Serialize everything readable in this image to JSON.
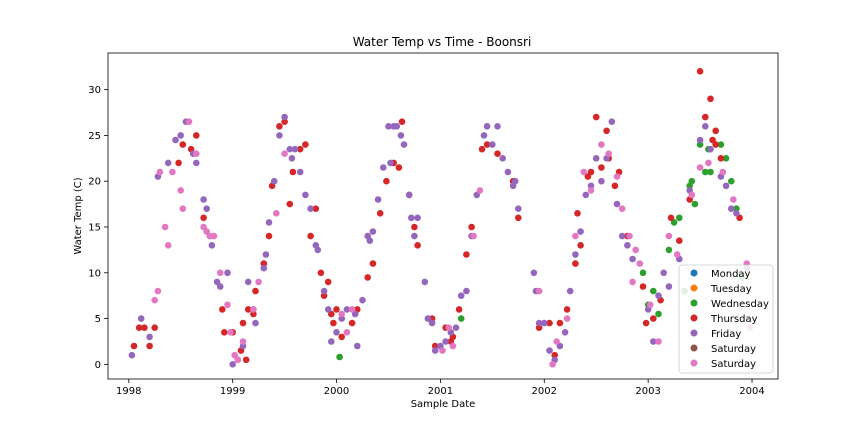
{
  "chart_data": {
    "type": "scatter",
    "title": "Water Temp vs Time - Boonsri",
    "xlabel": "Sample Date",
    "ylabel": "Water Temp (C)",
    "xlim": [
      1997.8,
      2004.25
    ],
    "ylim": [
      -1.6,
      34.0
    ],
    "x_ticks": [
      1998,
      1999,
      2000,
      2001,
      2002,
      2003,
      2004
    ],
    "x_tick_labels": [
      "1998",
      "1999",
      "2000",
      "2001",
      "2002",
      "2003",
      "2004"
    ],
    "y_ticks": [
      0,
      5,
      10,
      15,
      20,
      25,
      30
    ],
    "y_tick_labels": [
      "0",
      "5",
      "10",
      "15",
      "20",
      "25",
      "30"
    ],
    "grid": false,
    "legend_position": "lower-right",
    "series": [
      {
        "name": "Monday",
        "color": "#1f77b4",
        "points": []
      },
      {
        "name": "Tuesday",
        "color": "#ff7f0e",
        "points": []
      },
      {
        "name": "Wednesday",
        "color": "#2ca02c",
        "points": [
          [
            2000.03,
            0.8
          ],
          [
            2001.2,
            5.0
          ],
          [
            2003.0,
            6.5
          ],
          [
            2003.05,
            8.0
          ],
          [
            2003.1,
            5.5
          ],
          [
            2003.2,
            12.5
          ],
          [
            2003.25,
            15.5
          ],
          [
            2003.3,
            16.0
          ],
          [
            2003.35,
            8.0
          ],
          [
            2003.4,
            19.5
          ],
          [
            2003.42,
            20.0
          ],
          [
            2003.45,
            17.5
          ],
          [
            2003.5,
            24.0
          ],
          [
            2003.55,
            21.0
          ],
          [
            2003.6,
            21.0
          ],
          [
            2003.7,
            24.0
          ],
          [
            2003.75,
            22.5
          ],
          [
            2003.8,
            20.0
          ],
          [
            2003.85,
            17.0
          ],
          [
            2003.9,
            9.5
          ],
          [
            2002.95,
            10.0
          ],
          [
            2003.58,
            23.5
          ]
        ]
      },
      {
        "name": "Thursday",
        "color": "#d62728",
        "points": [
          [
            1998.05,
            2.0
          ],
          [
            1998.1,
            4.0
          ],
          [
            1998.15,
            4.0
          ],
          [
            1998.2,
            2.0
          ],
          [
            1998.25,
            4.0
          ],
          [
            1998.48,
            22.0
          ],
          [
            1998.52,
            24.0
          ],
          [
            1998.6,
            23.5
          ],
          [
            1998.65,
            25.0
          ],
          [
            1998.72,
            16.0
          ],
          [
            1998.9,
            6.0
          ],
          [
            1998.92,
            3.5
          ],
          [
            1999.0,
            3.5
          ],
          [
            1999.08,
            1.5
          ],
          [
            1999.1,
            4.5
          ],
          [
            1999.13,
            0.5
          ],
          [
            1999.15,
            6.0
          ],
          [
            1999.2,
            5.5
          ],
          [
            1999.22,
            8.0
          ],
          [
            1999.3,
            11.0
          ],
          [
            1999.35,
            14.0
          ],
          [
            1999.38,
            19.5
          ],
          [
            1999.45,
            26.0
          ],
          [
            1999.5,
            26.5
          ],
          [
            1999.55,
            17.5
          ],
          [
            1999.58,
            21.0
          ],
          [
            1999.65,
            23.5
          ],
          [
            1999.7,
            24.0
          ],
          [
            1999.75,
            14.0
          ],
          [
            1999.8,
            17.0
          ],
          [
            1999.85,
            10.0
          ],
          [
            1999.88,
            7.5
          ],
          [
            1999.92,
            9.0
          ],
          [
            1999.95,
            5.5
          ],
          [
            1999.97,
            4.5
          ],
          [
            2000.0,
            6.0
          ],
          [
            2000.05,
            3.0
          ],
          [
            2000.15,
            4.5
          ],
          [
            2000.2,
            6.0
          ],
          [
            2000.3,
            9.5
          ],
          [
            2000.35,
            11.0
          ],
          [
            2000.42,
            16.5
          ],
          [
            2000.48,
            20.0
          ],
          [
            2000.55,
            22.0
          ],
          [
            2000.6,
            21.5
          ],
          [
            2000.63,
            26.5
          ],
          [
            2000.7,
            18.5
          ],
          [
            2000.75,
            15.0
          ],
          [
            2000.78,
            13.0
          ],
          [
            2000.92,
            5.0
          ],
          [
            2000.95,
            2.0
          ],
          [
            2001.05,
            4.0
          ],
          [
            2001.1,
            2.5
          ],
          [
            2001.12,
            3.0
          ],
          [
            2001.18,
            6.0
          ],
          [
            2001.25,
            12.0
          ],
          [
            2001.3,
            15.0
          ],
          [
            2001.4,
            23.5
          ],
          [
            2001.45,
            24.0
          ],
          [
            2001.55,
            23.0
          ],
          [
            2001.7,
            20.0
          ],
          [
            2001.75,
            16.0
          ],
          [
            2001.95,
            4.0
          ],
          [
            2002.05,
            4.5
          ],
          [
            2002.1,
            1.0
          ],
          [
            2002.15,
            4.5
          ],
          [
            2002.22,
            6.0
          ],
          [
            2002.3,
            11.0
          ],
          [
            2002.32,
            16.5
          ],
          [
            2002.35,
            13.0
          ],
          [
            2002.42,
            20.5
          ],
          [
            2002.45,
            21.0
          ],
          [
            2002.5,
            27.0
          ],
          [
            2002.55,
            21.5
          ],
          [
            2002.6,
            25.5
          ],
          [
            2002.62,
            22.5
          ],
          [
            2002.68,
            19.5
          ],
          [
            2002.72,
            21.0
          ],
          [
            2002.8,
            14.0
          ],
          [
            2002.95,
            8.5
          ],
          [
            2002.98,
            4.5
          ],
          [
            2003.05,
            5.0
          ],
          [
            2003.12,
            7.0
          ],
          [
            2003.22,
            16.0
          ],
          [
            2003.3,
            13.5
          ],
          [
            2003.4,
            18.0
          ],
          [
            2003.5,
            32.0
          ],
          [
            2003.55,
            27.0
          ],
          [
            2003.6,
            29.0
          ],
          [
            2003.62,
            24.5
          ],
          [
            2003.65,
            24.0
          ],
          [
            2003.7,
            22.5
          ],
          [
            2003.88,
            16.0
          ],
          [
            2003.65,
            25.5
          ]
        ]
      },
      {
        "name": "Friday",
        "color": "#9467bd",
        "points": [
          [
            1998.03,
            1.0
          ],
          [
            1998.12,
            5.0
          ],
          [
            1998.2,
            3.0
          ],
          [
            1998.28,
            20.5
          ],
          [
            1998.38,
            22.0
          ],
          [
            1998.45,
            24.5
          ],
          [
            1998.5,
            25.0
          ],
          [
            1998.55,
            26.5
          ],
          [
            1998.62,
            23.0
          ],
          [
            1998.65,
            22.0
          ],
          [
            1998.72,
            18.0
          ],
          [
            1998.75,
            17.0
          ],
          [
            1998.8,
            13.0
          ],
          [
            1998.85,
            9.0
          ],
          [
            1998.88,
            8.5
          ],
          [
            1998.95,
            10.0
          ],
          [
            1999.0,
            0.0
          ],
          [
            1999.05,
            0.5
          ],
          [
            1999.1,
            2.0
          ],
          [
            1999.15,
            9.0
          ],
          [
            1999.2,
            6.0
          ],
          [
            1999.22,
            4.5
          ],
          [
            1999.3,
            10.5
          ],
          [
            1999.32,
            12.0
          ],
          [
            1999.35,
            15.5
          ],
          [
            1999.4,
            20.0
          ],
          [
            1999.45,
            25.0
          ],
          [
            1999.5,
            27.0
          ],
          [
            1999.55,
            23.5
          ],
          [
            1999.57,
            22.5
          ],
          [
            1999.6,
            23.5
          ],
          [
            1999.65,
            21.0
          ],
          [
            1999.7,
            18.5
          ],
          [
            1999.75,
            17.0
          ],
          [
            1999.8,
            13.0
          ],
          [
            1999.82,
            12.5
          ],
          [
            1999.88,
            8.0
          ],
          [
            1999.92,
            6.0
          ],
          [
            1999.95,
            2.5
          ],
          [
            2000.0,
            3.5
          ],
          [
            2000.05,
            5.0
          ],
          [
            2000.1,
            6.0
          ],
          [
            2000.18,
            5.5
          ],
          [
            2000.2,
            2.0
          ],
          [
            2000.25,
            7.0
          ],
          [
            2000.3,
            14.0
          ],
          [
            2000.32,
            13.5
          ],
          [
            2000.35,
            14.5
          ],
          [
            2000.4,
            18.0
          ],
          [
            2000.45,
            21.5
          ],
          [
            2000.5,
            26.0
          ],
          [
            2000.52,
            22.0
          ],
          [
            2000.55,
            26.0
          ],
          [
            2000.58,
            26.0
          ],
          [
            2000.62,
            25.0
          ],
          [
            2000.65,
            24.0
          ],
          [
            2000.7,
            18.5
          ],
          [
            2000.72,
            16.0
          ],
          [
            2000.75,
            14.0
          ],
          [
            2000.78,
            16.0
          ],
          [
            2000.85,
            9.0
          ],
          [
            2000.88,
            5.0
          ],
          [
            2000.92,
            4.5
          ],
          [
            2000.95,
            1.5
          ],
          [
            2001.0,
            2.0
          ],
          [
            2001.05,
            2.5
          ],
          [
            2001.1,
            3.5
          ],
          [
            2001.15,
            4.0
          ],
          [
            2001.2,
            7.5
          ],
          [
            2001.25,
            8.0
          ],
          [
            2001.3,
            14.0
          ],
          [
            2001.35,
            18.5
          ],
          [
            2001.42,
            25.0
          ],
          [
            2001.45,
            26.0
          ],
          [
            2001.5,
            24.0
          ],
          [
            2001.55,
            26.0
          ],
          [
            2001.6,
            22.5
          ],
          [
            2001.65,
            21.0
          ],
          [
            2001.7,
            19.5
          ],
          [
            2001.72,
            20.0
          ],
          [
            2001.75,
            17.0
          ],
          [
            2001.9,
            10.0
          ],
          [
            2001.92,
            8.0
          ],
          [
            2001.95,
            4.5
          ],
          [
            2002.0,
            4.5
          ],
          [
            2002.05,
            1.5
          ],
          [
            2002.1,
            0.5
          ],
          [
            2002.15,
            2.0
          ],
          [
            2002.2,
            3.5
          ],
          [
            2002.25,
            8.0
          ],
          [
            2002.3,
            12.0
          ],
          [
            2002.35,
            14.5
          ],
          [
            2002.4,
            18.5
          ],
          [
            2002.45,
            19.5
          ],
          [
            2002.5,
            22.5
          ],
          [
            2002.55,
            20.0
          ],
          [
            2002.6,
            22.5
          ],
          [
            2002.65,
            26.5
          ],
          [
            2002.7,
            17.5
          ],
          [
            2002.75,
            14.0
          ],
          [
            2002.8,
            13.0
          ],
          [
            2002.85,
            11.5
          ],
          [
            2003.0,
            6.0
          ],
          [
            2003.05,
            2.5
          ],
          [
            2003.1,
            7.5
          ],
          [
            2003.15,
            10.0
          ],
          [
            2003.2,
            8.5
          ],
          [
            2003.3,
            11.5
          ],
          [
            2003.4,
            19.0
          ],
          [
            2003.5,
            24.5
          ],
          [
            2003.55,
            26.0
          ],
          [
            2003.6,
            23.5
          ],
          [
            2003.7,
            20.5
          ],
          [
            2003.75,
            19.5
          ],
          [
            2003.8,
            17.0
          ],
          [
            2003.85,
            16.5
          ],
          [
            2003.95,
            10.5
          ]
        ]
      },
      {
        "name": "Saturday",
        "color": "#8c564b",
        "points": []
      },
      {
        "name": "Saturday",
        "color": "#e377c2",
        "points": [
          [
            1998.25,
            7.0
          ],
          [
            1998.28,
            8.0
          ],
          [
            1998.3,
            21.0
          ],
          [
            1998.35,
            15.0
          ],
          [
            1998.38,
            13.0
          ],
          [
            1998.42,
            21.0
          ],
          [
            1998.5,
            19.0
          ],
          [
            1998.52,
            17.0
          ],
          [
            1998.58,
            26.5
          ],
          [
            1998.65,
            23.0
          ],
          [
            1998.72,
            15.0
          ],
          [
            1998.75,
            14.5
          ],
          [
            1998.78,
            14.0
          ],
          [
            1998.82,
            14.0
          ],
          [
            1998.88,
            10.0
          ],
          [
            1998.95,
            6.5
          ],
          [
            1998.98,
            3.5
          ],
          [
            1999.02,
            1.0
          ],
          [
            1999.05,
            0.5
          ],
          [
            1999.1,
            2.5
          ],
          [
            1999.2,
            6.0
          ],
          [
            1999.25,
            9.0
          ],
          [
            1999.42,
            16.5
          ],
          [
            1999.5,
            23.0
          ],
          [
            2000.05,
            5.5
          ],
          [
            2000.1,
            3.5
          ],
          [
            2000.15,
            6.0
          ],
          [
            2001.02,
            1.5
          ],
          [
            2001.08,
            4.0
          ],
          [
            2001.12,
            2.0
          ],
          [
            2001.32,
            14.0
          ],
          [
            2001.38,
            19.0
          ],
          [
            2001.95,
            8.0
          ],
          [
            2002.08,
            0.0
          ],
          [
            2002.12,
            2.5
          ],
          [
            2002.22,
            5.0
          ],
          [
            2002.3,
            14.0
          ],
          [
            2002.38,
            21.0
          ],
          [
            2002.45,
            19.0
          ],
          [
            2002.55,
            24.0
          ],
          [
            2002.62,
            23.0
          ],
          [
            2002.7,
            20.5
          ],
          [
            2002.75,
            17.0
          ],
          [
            2002.82,
            14.0
          ],
          [
            2002.88,
            12.5
          ],
          [
            2002.92,
            11.0
          ],
          [
            2003.02,
            6.5
          ],
          [
            2003.1,
            2.5
          ],
          [
            2003.2,
            14.0
          ],
          [
            2003.28,
            12.0
          ],
          [
            2003.42,
            18.5
          ],
          [
            2003.5,
            21.5
          ],
          [
            2003.58,
            22.0
          ],
          [
            2003.72,
            21.0
          ],
          [
            2003.82,
            18.0
          ],
          [
            2003.95,
            11.0
          ],
          [
            2003.98,
            4.0
          ],
          [
            2002.85,
            9.0
          ]
        ]
      }
    ]
  }
}
